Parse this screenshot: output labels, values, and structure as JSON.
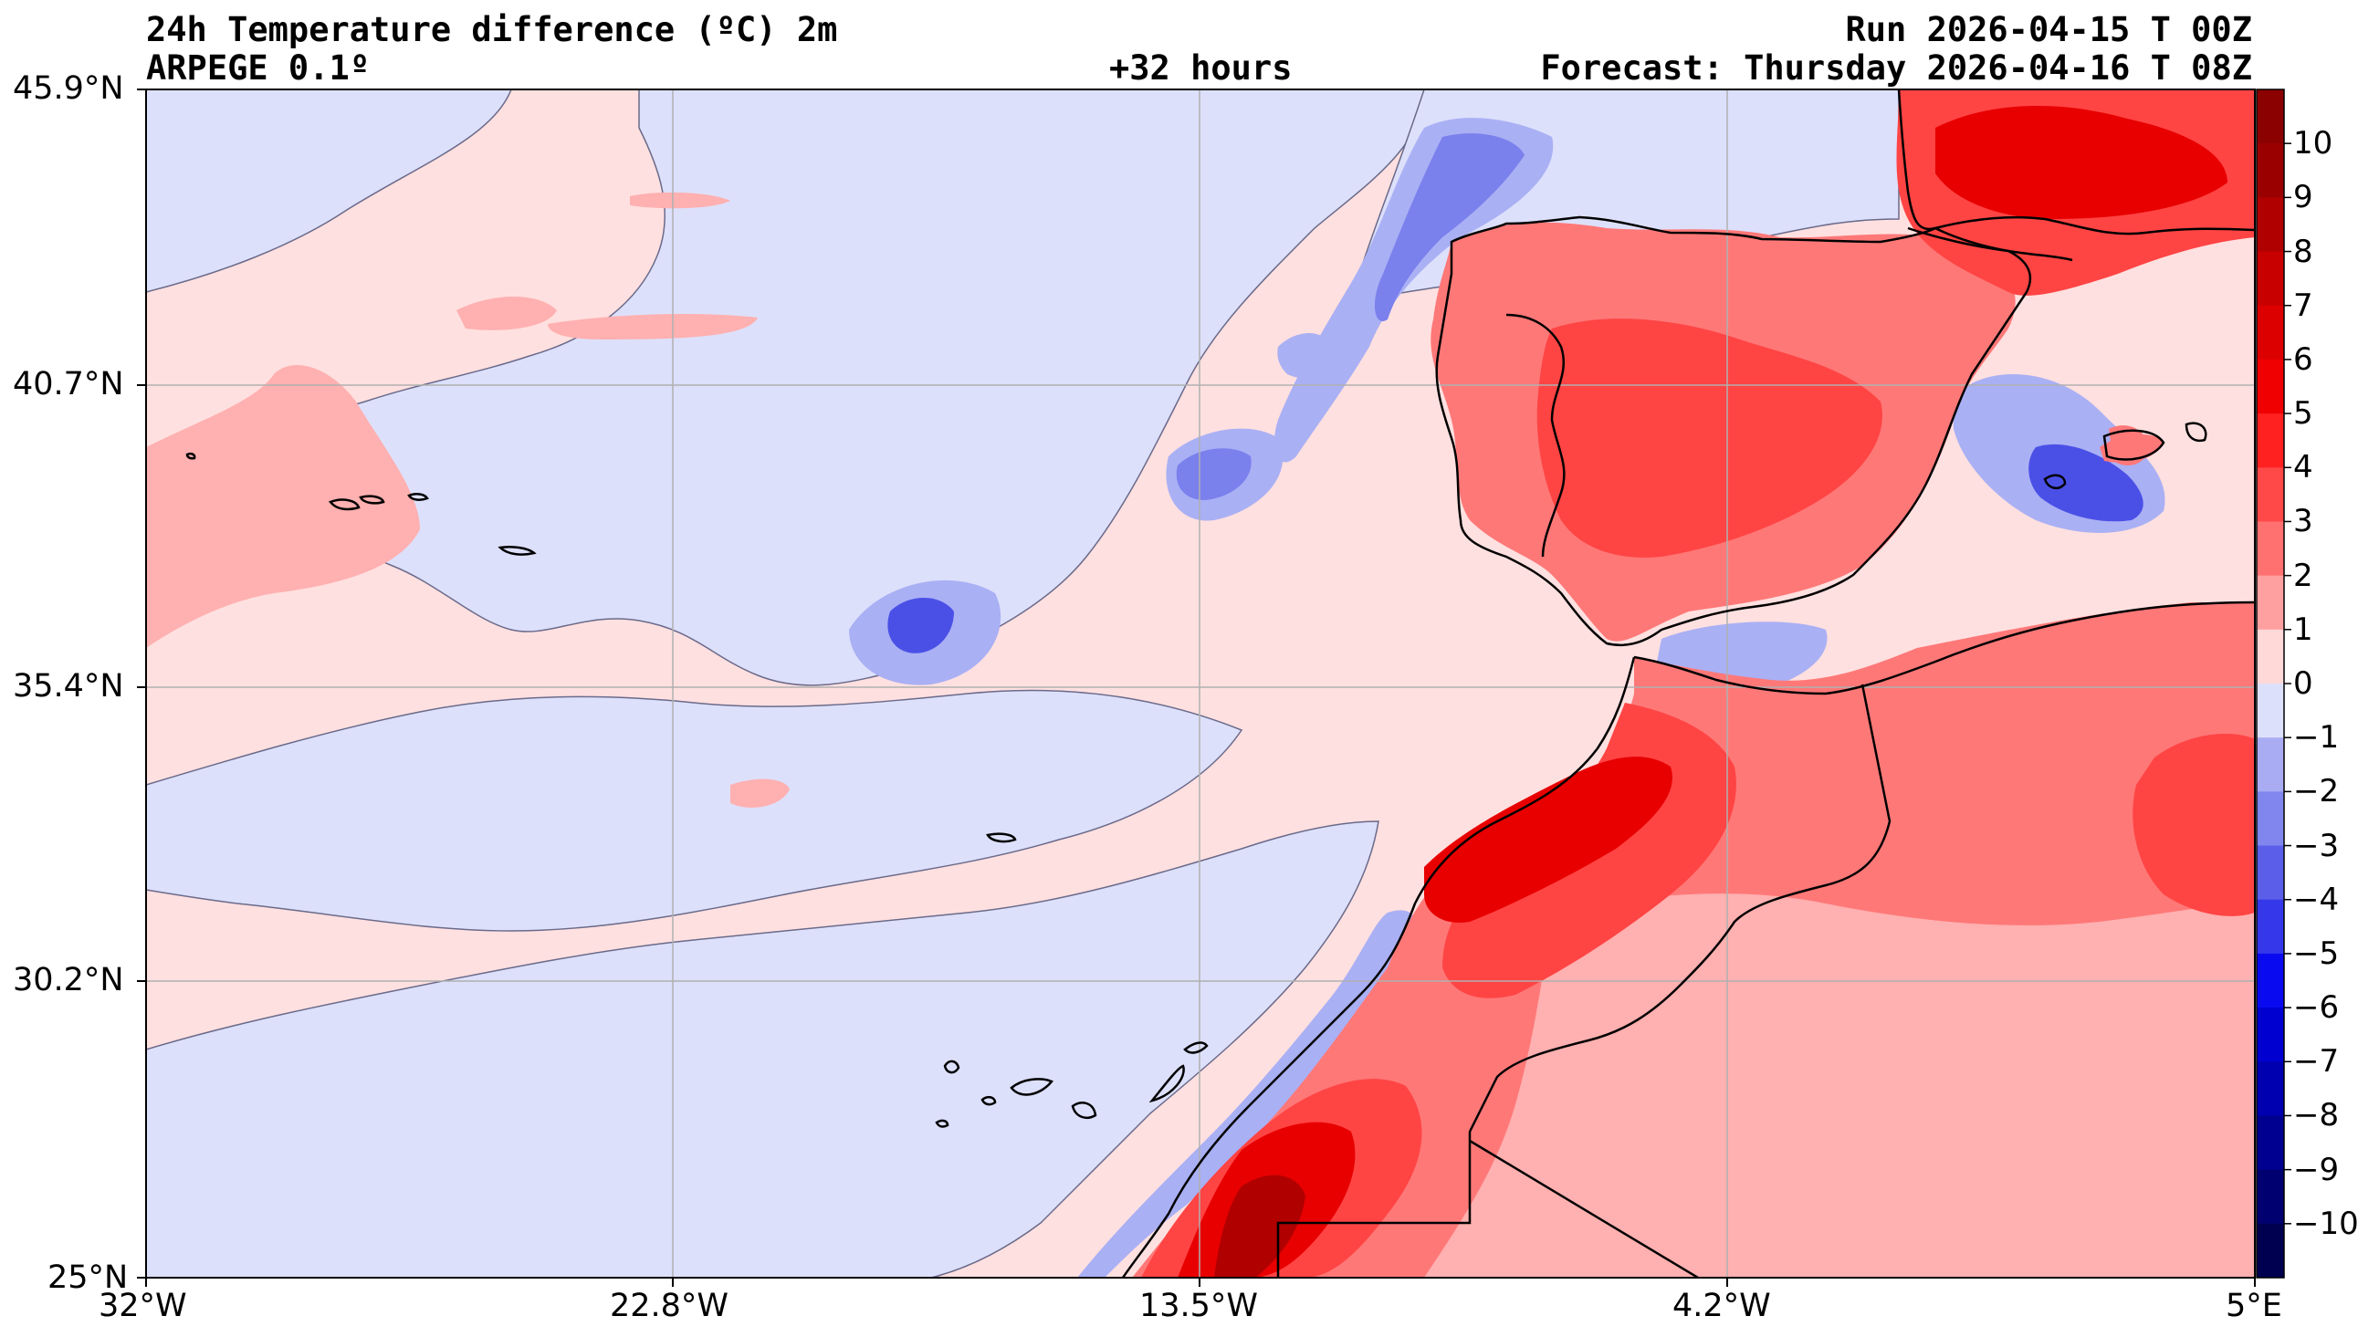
{
  "header": {
    "title": "24h Temperature difference (ºC) 2m",
    "model": "ARPEGE 0.1º",
    "lead": "+32 hours",
    "run": "Run 2026-04-15 T 00Z",
    "forecast": "Forecast: Thursday 2026-04-16 T 08Z"
  },
  "map": {
    "lon_range": [
      -32,
      5
    ],
    "lat_range": [
      25,
      45.9
    ],
    "lon_ticks": [
      "32°W",
      "22.8°W",
      "13.5°W",
      "4.2°W",
      "5°E"
    ],
    "lat_ticks": [
      "45.9°N",
      "40.7°N",
      "35.4°N",
      "30.2°N",
      "25°N"
    ],
    "grid": true
  },
  "colorbar": {
    "labels": [
      "10",
      "9",
      "8",
      "7",
      "6",
      "5",
      "4",
      "3",
      "2",
      "1",
      "0",
      "−1",
      "−2",
      "−3",
      "−4",
      "−5",
      "−6",
      "−7",
      "−8",
      "−9",
      "−10"
    ],
    "range": [
      -11,
      11
    ],
    "colors_top_to_bottom": [
      "#8b0000",
      "#9b0000",
      "#b00000",
      "#c80000",
      "#dc0000",
      "#f00000",
      "#ff2020",
      "#ff4848",
      "#ff7070",
      "#ffa0a0",
      "#ffd8d8",
      "#dde0fb",
      "#a9acf3",
      "#8086ee",
      "#5a5ee8",
      "#3438ea",
      "#0a0af0",
      "#0000d0",
      "#0000b0",
      "#000090",
      "#000070",
      "#000050"
    ]
  },
  "palette": {
    "ocean_pos": "#ffe0e0",
    "ocean_neg": "#dde0fb",
    "warm_1": "#ffb0b0",
    "warm_2": "#ff7878",
    "warm_3": "#ff4444",
    "warm_4": "#e80000",
    "warm_5": "#b00000",
    "cool_1": "#aab0f4",
    "cool_2": "#7a80ec",
    "cool_3": "#4a50e6",
    "coast": "#000000",
    "grid": "#b0b0b0"
  }
}
